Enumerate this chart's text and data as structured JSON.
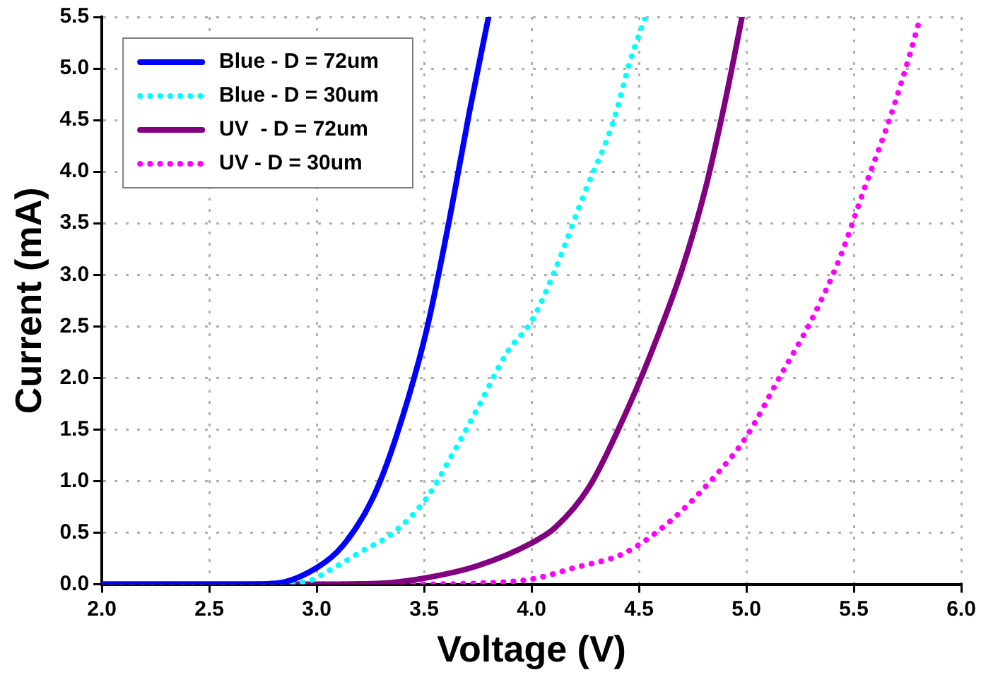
{
  "chart_data": {
    "type": "line",
    "xlabel": "Voltage (V)",
    "ylabel": "Current (mA)",
    "xlim": [
      2.0,
      6.0
    ],
    "ylim": [
      0,
      5.5
    ],
    "xticks": [
      {
        "value": 2,
        "label": "2.0"
      },
      {
        "value": 2.5,
        "label": "2.5"
      },
      {
        "value": 3,
        "label": "3.0"
      },
      {
        "value": 3.5,
        "label": "3.5"
      },
      {
        "value": 4,
        "label": "4.0"
      },
      {
        "value": 4.5,
        "label": "4.5"
      },
      {
        "value": 5,
        "label": "5.0"
      },
      {
        "value": 5.5,
        "label": "5.5"
      },
      {
        "value": 6,
        "label": "6.0"
      }
    ],
    "yticks": [
      {
        "value": 0,
        "label": "0.0"
      },
      {
        "value": 0.5,
        "label": "0.5"
      },
      {
        "value": 1,
        "label": "1.0"
      },
      {
        "value": 1.5,
        "label": "1.5"
      },
      {
        "value": 2,
        "label": "2.0"
      },
      {
        "value": 2.5,
        "label": "2.5"
      },
      {
        "value": 3,
        "label": "3.0"
      },
      {
        "value": 3.5,
        "label": "3.5"
      },
      {
        "value": 4,
        "label": "4.0"
      },
      {
        "value": 4.5,
        "label": "4.5"
      },
      {
        "value": 5,
        "label": "5.0"
      },
      {
        "value": 5.5,
        "label": "5.5"
      }
    ],
    "grid": true,
    "legend": "top left",
    "marker": "none",
    "series": [
      {
        "name": "Blue - D = 72um",
        "color": "#0000ff",
        "line_style": "solid",
        "x": [
          2.0,
          2.6,
          2.81,
          3.0,
          3.12,
          3.26,
          3.37,
          3.51,
          3.62,
          3.71,
          3.8
        ],
        "values": [
          0,
          0,
          0.01,
          0.16,
          0.37,
          0.83,
          1.43,
          2.45,
          3.56,
          4.57,
          5.5
        ]
      },
      {
        "name": "Blue - D = 30um",
        "color": "#00ffff",
        "line_style": "dotted",
        "x": [
          2.0,
          2.7,
          2.94,
          3.08,
          3.21,
          3.35,
          3.51,
          3.64,
          3.75,
          3.89,
          4.0,
          4.11,
          4.25,
          4.38,
          4.46,
          4.53
        ],
        "values": [
          0,
          0,
          0.02,
          0.16,
          0.32,
          0.49,
          0.83,
          1.29,
          1.71,
          2.26,
          2.55,
          3.05,
          3.81,
          4.48,
          5.08,
          5.5
        ]
      },
      {
        "name": "UV  - D = 72um",
        "color": "#800080",
        "line_style": "solid",
        "x": [
          2.0,
          3.0,
          3.3,
          3.53,
          3.75,
          4.0,
          4.11,
          4.27,
          4.43,
          4.56,
          4.7,
          4.81,
          4.9,
          4.98
        ],
        "values": [
          0,
          0,
          0.01,
          0.07,
          0.18,
          0.4,
          0.55,
          0.95,
          1.62,
          2.26,
          3.05,
          3.84,
          4.67,
          5.5
        ]
      },
      {
        "name": "UV - D = 30um",
        "color": "#ff00ff",
        "line_style": "dotted",
        "x": [
          2.0,
          3.4,
          3.75,
          4.0,
          4.2,
          4.43,
          4.65,
          4.88,
          5.0,
          5.15,
          5.31,
          5.44,
          5.55,
          5.67,
          5.76,
          5.81
        ],
        "values": [
          0,
          0,
          0.01,
          0.05,
          0.16,
          0.3,
          0.62,
          1.11,
          1.43,
          1.99,
          2.59,
          3.19,
          3.84,
          4.53,
          5.13,
          5.5
        ]
      }
    ]
  }
}
